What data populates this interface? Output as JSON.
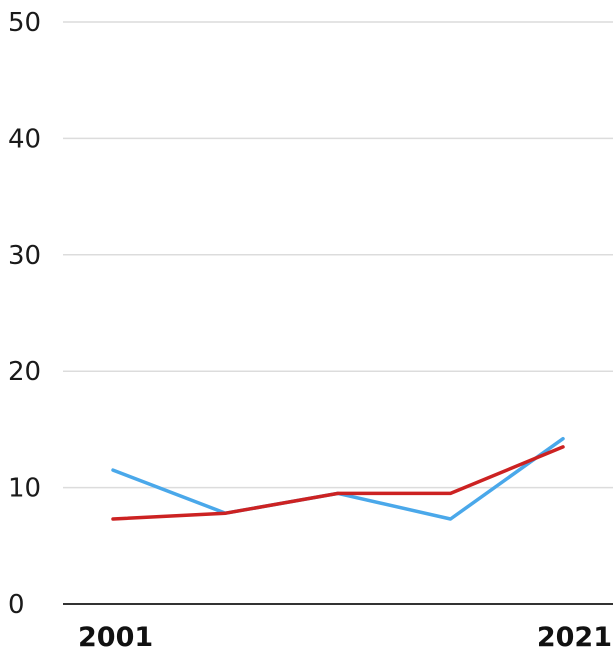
{
  "chart_data": {
    "type": "line",
    "x": [
      2001,
      2006,
      2011,
      2016,
      2021
    ],
    "x_tick_labels": [
      "2001",
      "2021"
    ],
    "y_ticks": [
      0,
      10,
      20,
      30,
      40,
      50
    ],
    "ylim": [
      0,
      50
    ],
    "grid": true,
    "series": [
      {
        "color": "#4aa8ea",
        "values": [
          11.5,
          7.8,
          9.5,
          7.3,
          14.2
        ]
      },
      {
        "color": "#cc2222",
        "values": [
          7.3,
          7.8,
          9.5,
          9.5,
          13.5
        ]
      }
    ]
  }
}
